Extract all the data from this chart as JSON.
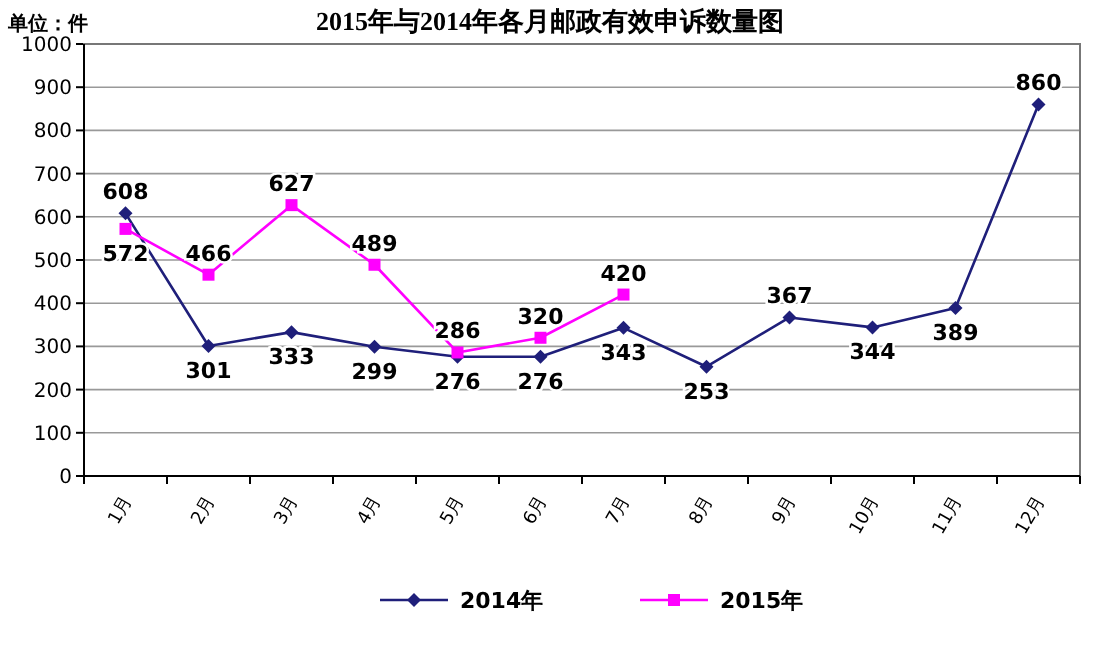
{
  "chart_data": {
    "type": "line",
    "title": "2015年与2014年各月邮政有效申诉数量图",
    "ylabel": "单位：件",
    "categories": [
      "1月",
      "2月",
      "3月",
      "4月",
      "5月",
      "6月",
      "7月",
      "8月",
      "9月",
      "10月",
      "11月",
      "12月"
    ],
    "series": [
      {
        "name": "2014年",
        "color": "#1f1f7a",
        "marker": "diamond",
        "values": [
          608,
          301,
          333,
          299,
          276,
          276,
          343,
          253,
          367,
          344,
          389,
          860
        ]
      },
      {
        "name": "2015年",
        "color": "#ff00ff",
        "marker": "square",
        "values": [
          572,
          466,
          627,
          489,
          286,
          320,
          420,
          null,
          null,
          null,
          null,
          null
        ]
      }
    ],
    "ylim": [
      0,
      1000
    ],
    "yticks": [
      0,
      100,
      200,
      300,
      400,
      500,
      600,
      700,
      800,
      900,
      1000
    ],
    "grid": "y",
    "legend": "bottom",
    "data_labels": true
  }
}
